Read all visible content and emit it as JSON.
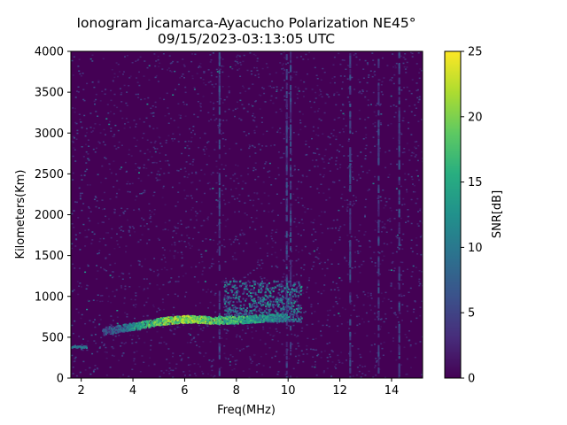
{
  "chart_data": {
    "type": "heatmap",
    "title": "Ionogram Jicamarca-Ayacucho Polarization NE45°",
    "subtitle": "09/15/2023-03:13:05 UTC",
    "xlabel": "Freq(MHz)",
    "ylabel": "Kilometers(Km)",
    "xlim": [
      1.6,
      15.2
    ],
    "ylim": [
      0,
      4000
    ],
    "xticks": [
      "2",
      "4",
      "6",
      "8",
      "10",
      "12",
      "14"
    ],
    "xtick_values": [
      2,
      4,
      6,
      8,
      10,
      12,
      14
    ],
    "yticks": [
      "0",
      "500",
      "1000",
      "1500",
      "2000",
      "2500",
      "3000",
      "3500",
      "4000"
    ],
    "ytick_values": [
      0,
      500,
      1000,
      1500,
      2000,
      2500,
      3000,
      3500,
      4000
    ],
    "colorbar": {
      "label": "SNR[dB]",
      "range": [
        0,
        25
      ],
      "ticks": [
        "0",
        "5",
        "10",
        "15",
        "20",
        "25"
      ],
      "tick_values": [
        0,
        5,
        10,
        15,
        20,
        25
      ],
      "colormap": "viridis"
    },
    "features": {
      "f_trace": {
        "freq_mhz": [
          2.8,
          3.5,
          4.0,
          4.5,
          5.0,
          5.5,
          6.0,
          6.5,
          7.0,
          7.5,
          8.0,
          8.5,
          9.0,
          9.5,
          9.9
        ],
        "range_km": [
          560,
          600,
          620,
          650,
          680,
          700,
          710,
          710,
          700,
          700,
          700,
          710,
          720,
          730,
          740
        ],
        "snr_db": [
          8,
          12,
          16,
          20,
          22,
          23,
          24,
          23,
          22,
          20,
          20,
          18,
          17,
          15,
          14
        ]
      },
      "spread_cloud": {
        "freq_mhz": [
          7.5,
          10.5
        ],
        "range_km": [
          700,
          1200
        ],
        "snr_db": [
          3,
          14
        ]
      },
      "low_echo": {
        "freq_mhz": [
          1.6,
          2.2
        ],
        "range_km": 390,
        "snr_db": 12
      },
      "interference_lines_mhz": [
        7.35,
        9.95,
        10.1,
        12.4,
        13.5,
        14.3
      ],
      "background_snr_db": 1
    }
  }
}
